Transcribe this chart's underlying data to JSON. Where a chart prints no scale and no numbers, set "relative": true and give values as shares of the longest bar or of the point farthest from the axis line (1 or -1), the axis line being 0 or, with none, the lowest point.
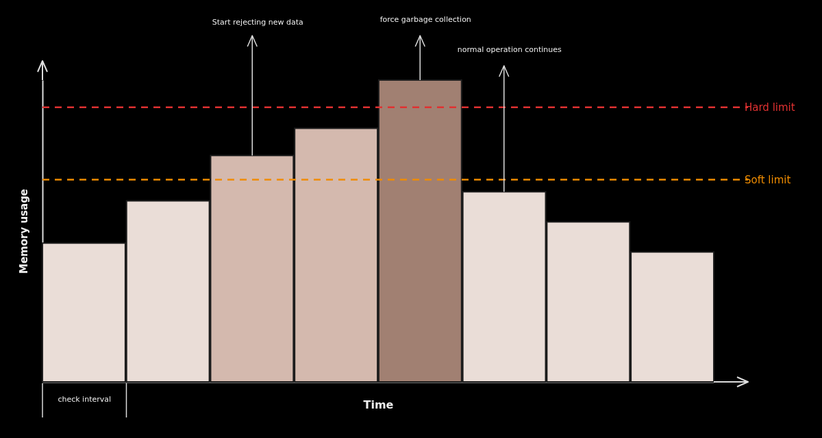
{
  "chart_data": {
    "type": "bar",
    "relative": true,
    "xlabel": "Time",
    "ylabel": "Memory usage",
    "categories": [
      null,
      null,
      null,
      null,
      null,
      null,
      null,
      null
    ],
    "values": [
      0.46,
      0.6,
      0.75,
      0.84,
      1,
      0.63,
      0.53,
      0.43
    ],
    "colors": [
      "#eaddd7",
      "#eaddd7",
      "#d4b9ae",
      "#d4b9ae",
      "#a18072",
      "#eaddd7",
      "#eaddd7",
      "#eaddd7"
    ],
    "ref_lines": [
      {
        "axis": "y",
        "value": 0.91,
        "label": "Hard limit",
        "color": "#e03131",
        "line_style": "dashed"
      },
      {
        "axis": "y",
        "value": 0.67,
        "label": "Soft limit",
        "color": "#f08c00",
        "line_style": "dashed"
      }
    ],
    "annotations": [
      "Start rejecting new data",
      "force garbage collection",
      "normal operation continues",
      "check interval"
    ]
  }
}
